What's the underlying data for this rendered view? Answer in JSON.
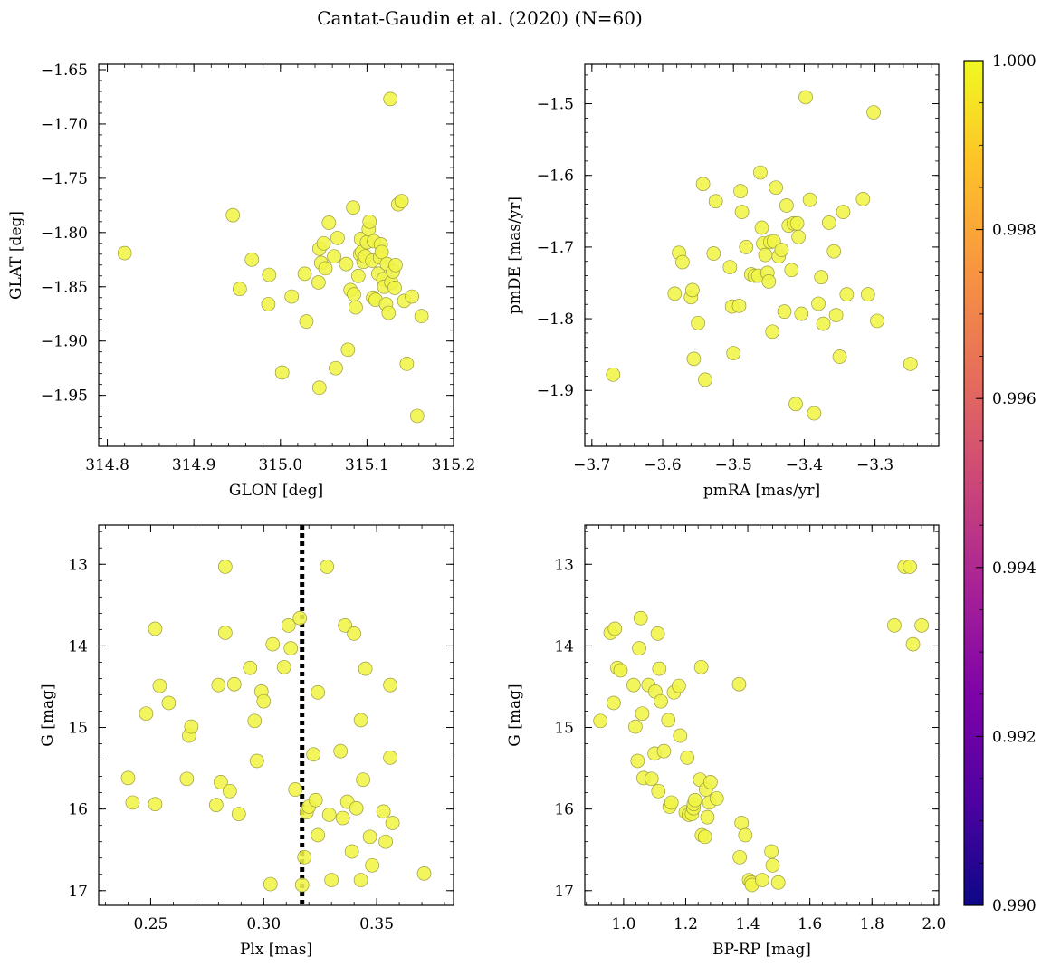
{
  "figure": {
    "title": "Cantat-Gaudin et al. (2020) (N=60)",
    "marker_color": "#f0f545",
    "marker_edge": "#9a9a40"
  },
  "colorbar": {
    "min": 0.99,
    "max": 1.0,
    "ticks": [
      "0.990",
      "0.992",
      "0.994",
      "0.996",
      "0.998",
      "1.000"
    ],
    "tick_values": [
      0.99,
      0.992,
      0.994,
      0.996,
      0.998,
      1.0
    ],
    "colormap": "plasma"
  },
  "chart_data": [
    {
      "type": "scatter",
      "xlabel": "GLON [deg]",
      "ylabel": "GLAT [deg]",
      "xlim": [
        314.79,
        315.2
      ],
      "ylim": [
        -1.997,
        -1.645
      ],
      "y_inverted": false,
      "xticks": [
        314.8,
        314.9,
        315.0,
        315.1,
        315.2
      ],
      "xtick_labels": [
        "314.8",
        "314.9",
        "315.0",
        "315.1",
        "315.2"
      ],
      "yticks": [
        -1.65,
        -1.7,
        -1.75,
        -1.8,
        -1.85,
        -1.9,
        -1.95
      ],
      "ytick_labels": [
        "−1.65",
        "−1.70",
        "−1.75",
        "−1.80",
        "−1.85",
        "−1.90",
        "−1.95"
      ],
      "x": [
        314.82,
        314.945,
        314.953,
        314.967,
        314.987,
        314.986,
        315.013,
        315.002,
        315.028,
        315.03,
        315.045,
        315.045,
        315.047,
        315.05,
        315.052,
        315.044,
        315.056,
        315.062,
        315.066,
        315.064,
        315.076,
        315.078,
        315.081,
        315.084,
        315.085,
        315.087,
        315.09,
        315.093,
        315.092,
        315.094,
        315.096,
        315.098,
        315.1,
        315.102,
        315.103,
        315.106,
        315.107,
        315.108,
        315.11,
        315.113,
        315.115,
        315.116,
        315.117,
        315.119,
        315.12,
        315.122,
        315.123,
        315.125,
        315.127,
        315.128,
        315.13,
        315.132,
        315.133,
        315.136,
        315.14,
        315.143,
        315.146,
        315.152,
        315.158,
        315.163
      ],
      "y": [
        -1.819,
        -1.784,
        -1.852,
        -1.825,
        -1.839,
        -1.866,
        -1.859,
        -1.929,
        -1.838,
        -1.882,
        -1.943,
        -1.815,
        -1.828,
        -1.81,
        -1.833,
        -1.846,
        -1.791,
        -1.822,
        -1.805,
        -1.925,
        -1.829,
        -1.908,
        -1.853,
        -1.777,
        -1.857,
        -1.869,
        -1.84,
        -1.806,
        -1.82,
        -1.818,
        -1.827,
        -1.822,
        -1.809,
        -1.797,
        -1.79,
        -1.826,
        -1.86,
        -1.808,
        -1.862,
        -1.838,
        -1.823,
        -1.811,
        -1.818,
        -1.843,
        -1.85,
        -1.866,
        -1.829,
        -1.874,
        -1.677,
        -1.846,
        -1.836,
        -1.851,
        -1.83,
        -1.774,
        -1.771,
        -1.863,
        -1.921,
        -1.859,
        -1.969,
        -1.877
      ]
    },
    {
      "type": "scatter",
      "xlabel": "pmRA [mas/yr]",
      "ylabel": "pmDE [mas/yr]",
      "xlim": [
        -3.71,
        -3.21
      ],
      "ylim": [
        -1.978,
        -1.445
      ],
      "y_inverted": false,
      "xticks": [
        -3.7,
        -3.6,
        -3.5,
        -3.4,
        -3.3
      ],
      "xtick_labels": [
        "−3.7",
        "−3.6",
        "−3.5",
        "−3.4",
        "−3.3"
      ],
      "yticks": [
        -1.5,
        -1.6,
        -1.7,
        -1.8,
        -1.9
      ],
      "ytick_labels": [
        "−1.5",
        "−1.6",
        "−1.7",
        "−1.8",
        "−1.9"
      ],
      "x": [
        -3.67,
        -3.583,
        -3.577,
        -3.572,
        -3.56,
        -3.558,
        -3.556,
        -3.55,
        -3.543,
        -3.54,
        -3.528,
        -3.525,
        -3.505,
        -3.502,
        -3.5,
        -3.492,
        -3.49,
        -3.488,
        -3.482,
        -3.475,
        -3.47,
        -3.465,
        -3.462,
        -3.46,
        -3.458,
        -3.455,
        -3.452,
        -3.45,
        -3.448,
        -3.445,
        -3.443,
        -3.44,
        -3.436,
        -3.432,
        -3.428,
        -3.425,
        -3.422,
        -3.418,
        -3.415,
        -3.412,
        -3.41,
        -3.408,
        -3.404,
        -3.398,
        -3.392,
        -3.386,
        -3.38,
        -3.376,
        -3.373,
        -3.365,
        -3.358,
        -3.355,
        -3.35,
        -3.345,
        -3.34,
        -3.317,
        -3.31,
        -3.302,
        -3.297,
        -3.25
      ],
      "y": [
        -1.878,
        -1.765,
        -1.708,
        -1.721,
        -1.77,
        -1.76,
        -1.856,
        -1.806,
        -1.612,
        -1.885,
        -1.709,
        -1.636,
        -1.728,
        -1.783,
        -1.848,
        -1.782,
        -1.622,
        -1.651,
        -1.7,
        -1.738,
        -1.74,
        -1.74,
        -1.596,
        -1.673,
        -1.695,
        -1.711,
        -1.736,
        -1.748,
        -1.693,
        -1.818,
        -1.692,
        -1.617,
        -1.713,
        -1.704,
        -1.79,
        -1.642,
        -1.67,
        -1.732,
        -1.667,
        -1.919,
        -1.667,
        -1.686,
        -1.793,
        -1.491,
        -1.634,
        -1.932,
        -1.779,
        -1.742,
        -1.807,
        -1.666,
        -1.706,
        -1.795,
        -1.853,
        -1.651,
        -1.766,
        -1.633,
        -1.766,
        -1.512,
        -1.803,
        -1.863
      ]
    },
    {
      "type": "scatter",
      "xlabel": "Plx [mas]",
      "ylabel": "G [mag]",
      "xlim": [
        0.227,
        0.384
      ],
      "ylim": [
        17.18,
        12.52
      ],
      "y_inverted": true,
      "xticks": [
        0.25,
        0.3,
        0.35
      ],
      "xtick_labels": [
        "0.25",
        "0.30",
        "0.35"
      ],
      "yticks": [
        13,
        14,
        15,
        16,
        17
      ],
      "ytick_labels": [
        "13",
        "14",
        "15",
        "16",
        "17"
      ],
      "vline": {
        "x": 0.317,
        "style": "dotted",
        "color": "#000000"
      },
      "x": [
        0.24,
        0.242,
        0.248,
        0.252,
        0.252,
        0.254,
        0.258,
        0.266,
        0.267,
        0.268,
        0.279,
        0.28,
        0.281,
        0.283,
        0.283,
        0.285,
        0.287,
        0.289,
        0.294,
        0.296,
        0.297,
        0.299,
        0.3,
        0.303,
        0.304,
        0.309,
        0.311,
        0.312,
        0.314,
        0.316,
        0.317,
        0.318,
        0.319,
        0.32,
        0.322,
        0.323,
        0.324,
        0.324,
        0.328,
        0.329,
        0.33,
        0.334,
        0.335,
        0.336,
        0.337,
        0.339,
        0.34,
        0.341,
        0.343,
        0.343,
        0.344,
        0.345,
        0.347,
        0.348,
        0.353,
        0.354,
        0.356,
        0.356,
        0.357,
        0.371
      ],
      "y": [
        15.62,
        15.92,
        14.83,
        15.94,
        13.79,
        14.49,
        14.7,
        15.63,
        15.1,
        14.99,
        15.95,
        14.48,
        15.67,
        13.03,
        13.84,
        15.78,
        14.47,
        16.06,
        14.27,
        14.92,
        15.41,
        14.56,
        14.68,
        16.92,
        13.98,
        14.26,
        13.75,
        14.03,
        15.76,
        13.66,
        16.93,
        16.59,
        16.04,
        15.97,
        15.33,
        15.89,
        16.32,
        14.57,
        13.03,
        16.07,
        16.87,
        15.29,
        16.11,
        13.75,
        15.91,
        16.52,
        13.85,
        15.99,
        14.91,
        16.87,
        15.64,
        14.28,
        16.34,
        16.69,
        16.03,
        16.4,
        15.37,
        14.48,
        16.17,
        16.79
      ]
    },
    {
      "type": "scatter",
      "xlabel": "BP-RP [mag]",
      "ylabel": "G [mag]",
      "xlim": [
        0.875,
        2.015
      ],
      "ylim": [
        17.18,
        12.52
      ],
      "y_inverted": true,
      "xticks": [
        1.0,
        1.2,
        1.4,
        1.6,
        1.8,
        2.0
      ],
      "xtick_labels": [
        "1.0",
        "1.2",
        "1.4",
        "1.6",
        "1.8",
        "2.0"
      ],
      "yticks": [
        13,
        14,
        15,
        16,
        17
      ],
      "ytick_labels": [
        "13",
        "14",
        "15",
        "16",
        "17"
      ],
      "x": [
        0.925,
        0.958,
        0.968,
        0.972,
        0.98,
        0.99,
        1.032,
        1.038,
        1.045,
        1.05,
        1.055,
        1.06,
        1.064,
        1.08,
        1.09,
        1.1,
        1.102,
        1.11,
        1.112,
        1.115,
        1.12,
        1.13,
        1.144,
        1.148,
        1.154,
        1.162,
        1.178,
        1.182,
        1.2,
        1.205,
        1.21,
        1.22,
        1.225,
        1.226,
        1.23,
        1.246,
        1.25,
        1.252,
        1.262,
        1.265,
        1.27,
        1.276,
        1.28,
        1.3,
        1.372,
        1.374,
        1.38,
        1.392,
        1.404,
        1.41,
        1.413,
        1.446,
        1.476,
        1.48,
        1.498,
        1.872,
        1.905,
        1.922,
        1.932,
        1.96
      ],
      "y": [
        14.92,
        13.84,
        14.7,
        13.79,
        14.27,
        14.3,
        14.48,
        14.99,
        15.41,
        14.03,
        13.66,
        14.83,
        15.62,
        14.48,
        15.63,
        15.32,
        14.56,
        13.85,
        15.78,
        14.28,
        14.68,
        15.29,
        14.91,
        15.97,
        15.92,
        14.57,
        14.49,
        15.1,
        16.04,
        15.37,
        16.07,
        16.06,
        15.99,
        15.94,
        15.89,
        15.64,
        14.26,
        16.32,
        16.34,
        15.76,
        16.1,
        15.92,
        15.67,
        15.87,
        14.47,
        16.59,
        16.17,
        16.32,
        16.87,
        16.9,
        16.93,
        16.87,
        16.52,
        16.69,
        16.9,
        13.75,
        13.03,
        13.03,
        13.98,
        13.75
      ]
    }
  ]
}
